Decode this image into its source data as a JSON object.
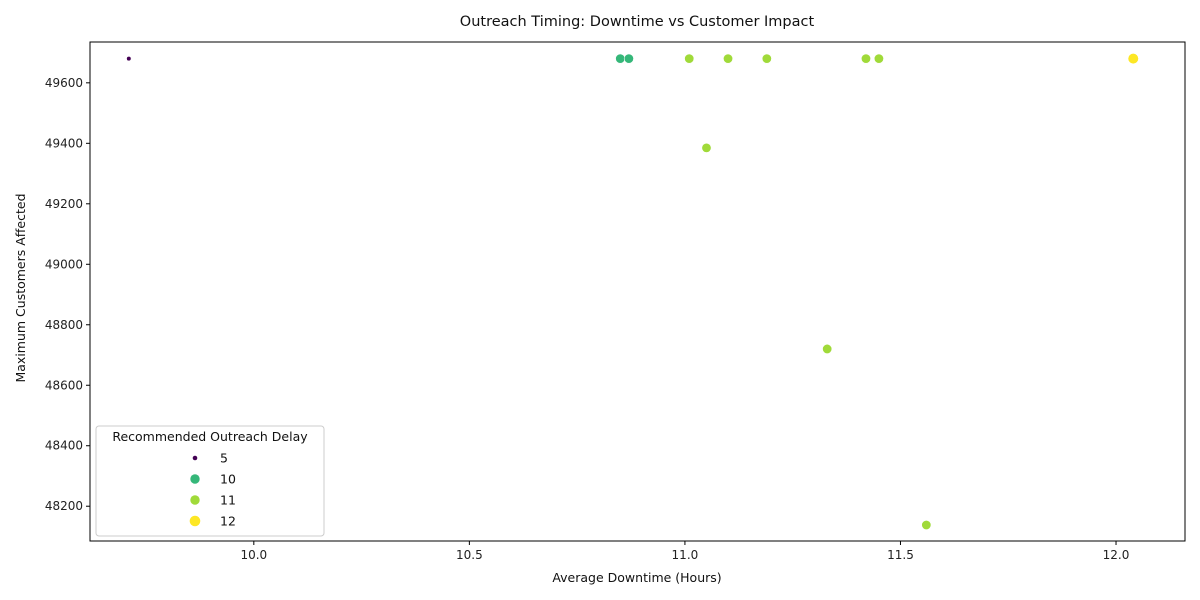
{
  "chart_data": {
    "type": "scatter",
    "title": "Outreach Timing: Downtime vs Customer Impact",
    "xlabel": "Average Downtime (Hours)",
    "ylabel": "Maximum Customers Affected",
    "xlim": [
      9.62,
      12.16
    ],
    "ylim": [
      48085,
      49735
    ],
    "xticks": [
      10.0,
      10.5,
      11.0,
      11.5,
      12.0
    ],
    "xtick_labels": [
      "10.0",
      "10.5",
      "11.0",
      "11.5",
      "12.0"
    ],
    "yticks": [
      48200,
      48400,
      48600,
      48800,
      49000,
      49200,
      49400,
      49600
    ],
    "ytick_labels": [
      "48200",
      "48400",
      "48600",
      "48800",
      "49000",
      "49200",
      "49400",
      "49600"
    ],
    "grid": false,
    "legend": {
      "title": "Recommended Outreach Delay",
      "placement": "lower-left",
      "entries": [
        {
          "label": "5",
          "value": 5,
          "color": "#440154"
        },
        {
          "label": "10",
          "value": 10,
          "color": "#35b779"
        },
        {
          "label": "11",
          "value": 11,
          "color": "#a0da39"
        },
        {
          "label": "12",
          "value": 12,
          "color": "#fde725"
        }
      ]
    },
    "points": [
      {
        "x": 9.71,
        "y": 49680,
        "delay": 5
      },
      {
        "x": 10.85,
        "y": 49680,
        "delay": 10
      },
      {
        "x": 10.87,
        "y": 49680,
        "delay": 10
      },
      {
        "x": 11.01,
        "y": 49680,
        "delay": 11
      },
      {
        "x": 11.05,
        "y": 49385,
        "delay": 11
      },
      {
        "x": 11.1,
        "y": 49680,
        "delay": 11
      },
      {
        "x": 11.19,
        "y": 49680,
        "delay": 11
      },
      {
        "x": 11.33,
        "y": 48720,
        "delay": 11
      },
      {
        "x": 11.42,
        "y": 49680,
        "delay": 11
      },
      {
        "x": 11.45,
        "y": 49680,
        "delay": 11
      },
      {
        "x": 11.56,
        "y": 48138,
        "delay": 11
      },
      {
        "x": 12.04,
        "y": 49680,
        "delay": 12
      }
    ]
  }
}
